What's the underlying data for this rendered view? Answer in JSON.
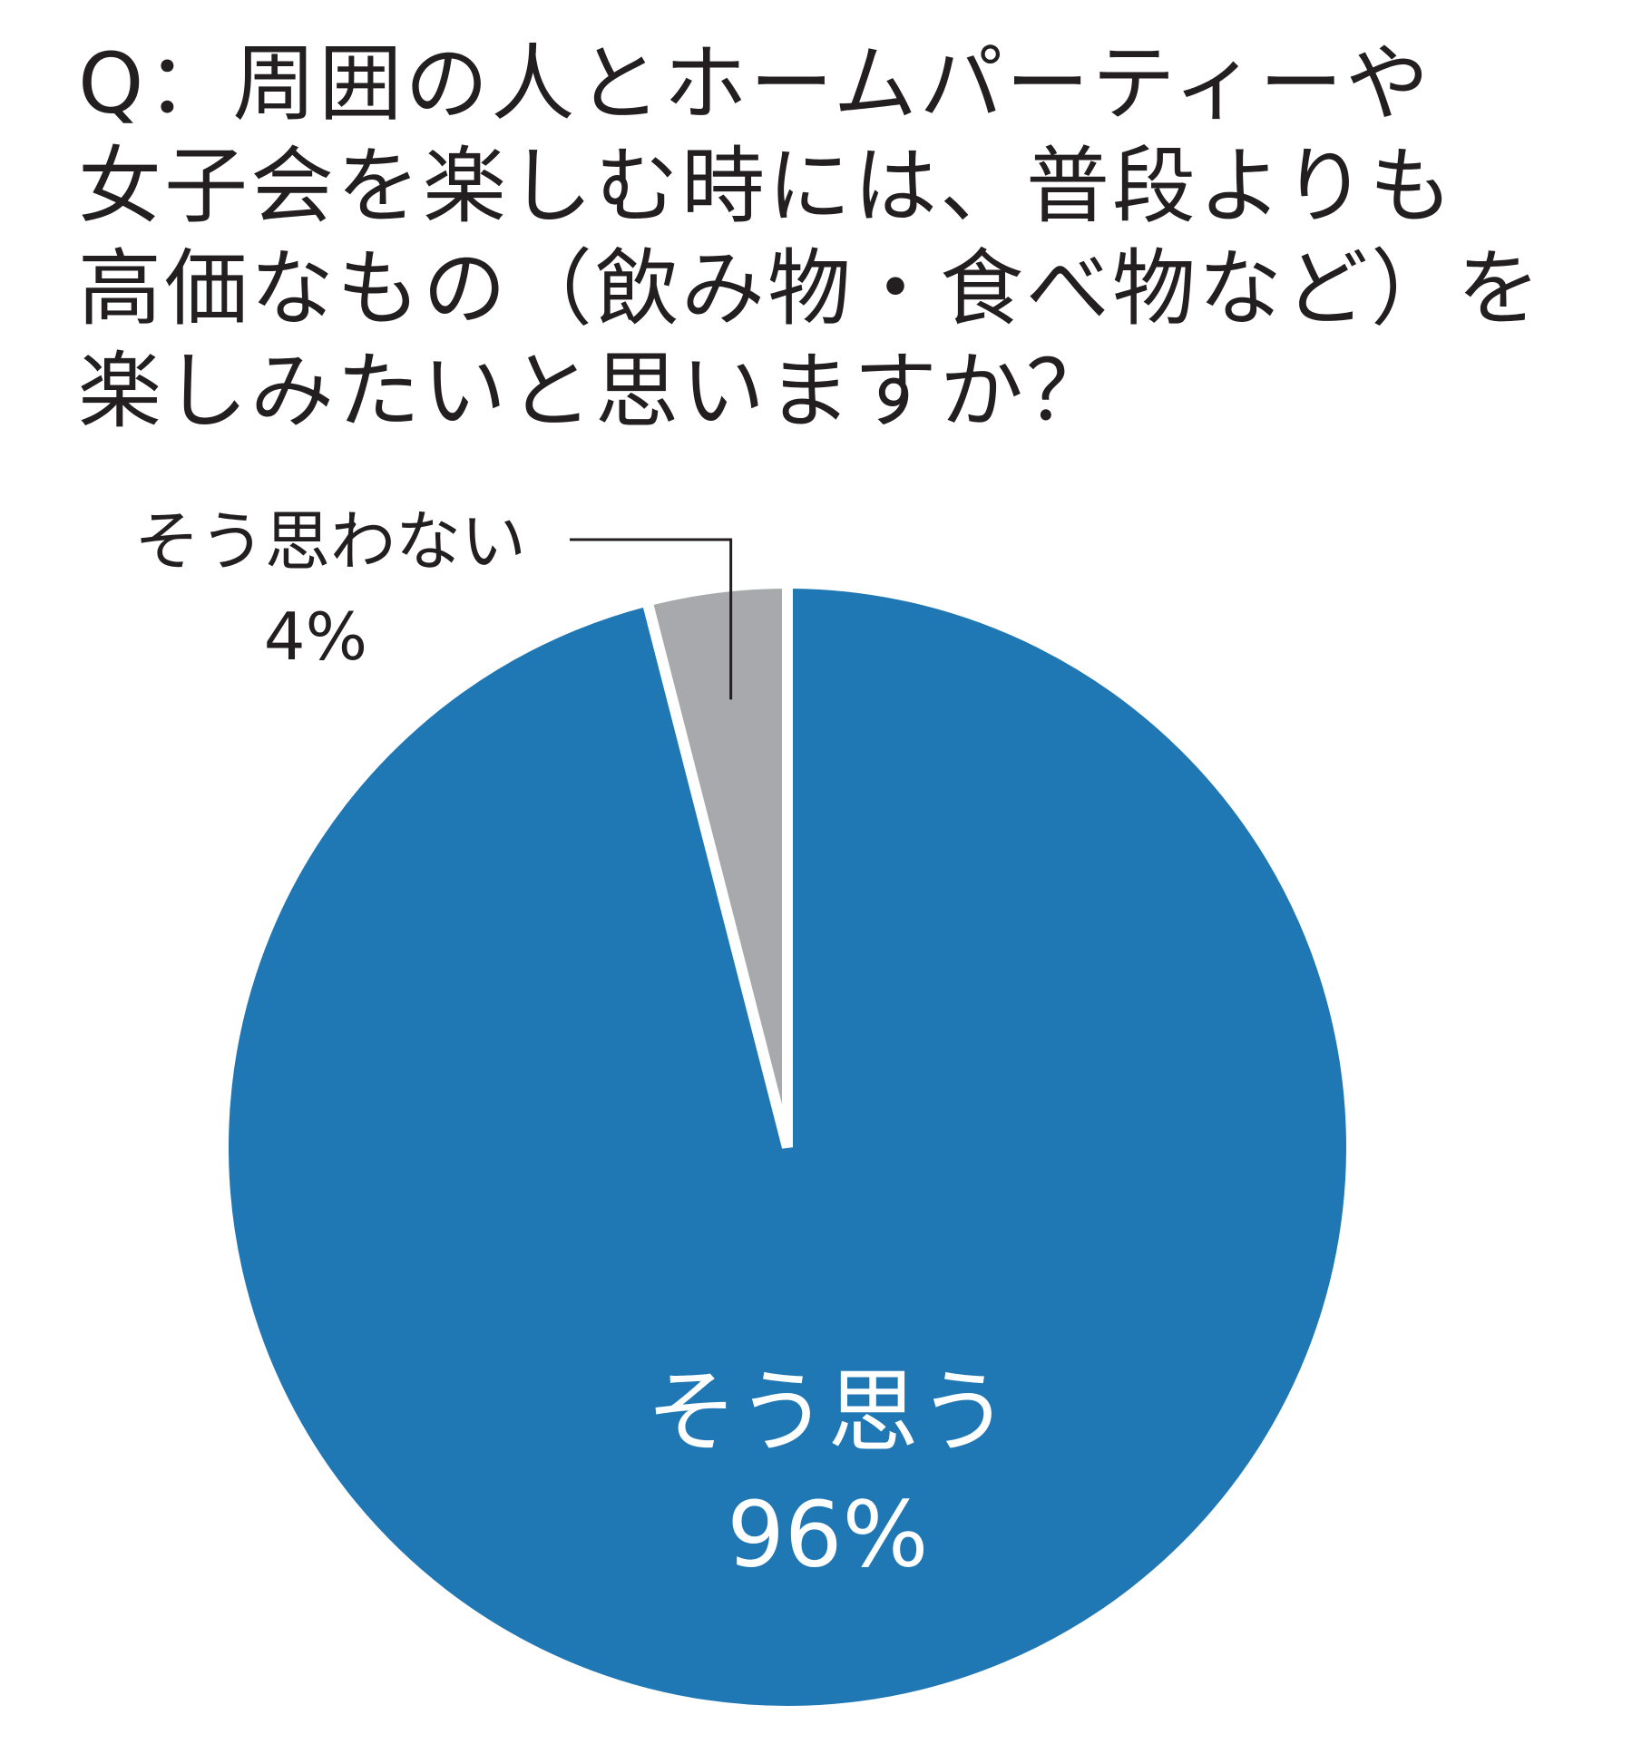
{
  "chart_data": {
    "type": "pie",
    "title": "Q：周囲の人とホームパーティーや\n女子会を楽しむ時には、普段よりも\n高価なもの（飲み物・食べ物など）を\n楽しみたいと思いますか？",
    "start_angle": "12 o'clock, clockwise",
    "slices": [
      {
        "label": "そう思う",
        "value": 96,
        "value_label": "96%",
        "color": "#1f77b4",
        "label_position": "inside"
      },
      {
        "label": "そう思わない",
        "value": 4,
        "value_label": "4%",
        "color": "#a7a9ac",
        "label_position": "outside"
      }
    ],
    "legend": "none",
    "separator_color": "#ffffff",
    "leader_line_color": "#231f20"
  }
}
